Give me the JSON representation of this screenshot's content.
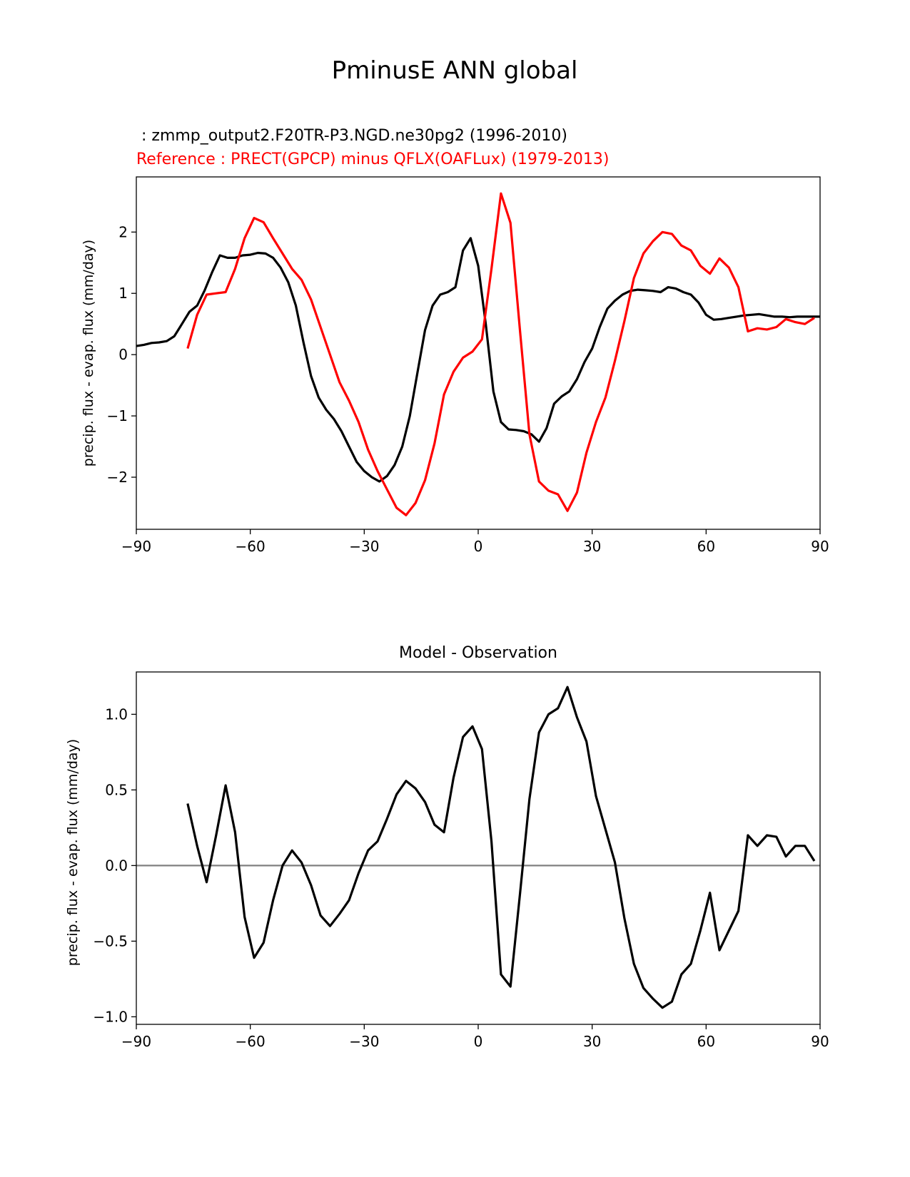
{
  "figure": {
    "suptitle": "PminusE ANN global"
  },
  "chart_data": [
    {
      "type": "line",
      "title_test": " : zmmp_output2.F20TR-P3.NGD.ne30pg2 (1996-2010)",
      "title_ref": "Reference : PRECT(GPCP) minus QFLX(OAFLux) (1979-2013)",
      "xlabel": "",
      "ylabel": "precip. flux - evap. flux (mm/day)",
      "xlim": [
        -90,
        90
      ],
      "ylim": [
        -2.85,
        2.9
      ],
      "xticks": [
        -90,
        -60,
        -30,
        0,
        30,
        60,
        90
      ],
      "xtick_labels": [
        "−90",
        "−60",
        "−30",
        "0",
        "30",
        "60",
        "90"
      ],
      "yticks": [
        -2,
        -1,
        0,
        1,
        2
      ],
      "ytick_labels": [
        "−2",
        "−1",
        "0",
        "1",
        "2"
      ],
      "grid": false,
      "series": [
        {
          "name": "test",
          "color": "#000000",
          "x": [
            -90,
            -88,
            -86,
            -84,
            -82,
            -80,
            -78,
            -76,
            -74,
            -72,
            -70,
            -68,
            -66,
            -64,
            -62,
            -60,
            -58,
            -56,
            -54,
            -52,
            -50,
            -48,
            -46,
            -44,
            -42,
            -40,
            -38,
            -36,
            -34,
            -32,
            -30,
            -28,
            -26,
            -24,
            -22,
            -20,
            -18,
            -16,
            -14,
            -12,
            -10,
            -8,
            -6,
            -4,
            -2,
            0,
            2,
            4,
            6,
            8,
            10,
            12,
            14,
            16,
            18,
            20,
            22,
            24,
            26,
            28,
            30,
            32,
            34,
            36,
            38,
            40,
            42,
            44,
            46,
            48,
            50,
            52,
            54,
            56,
            58,
            60,
            62,
            64,
            66,
            68,
            70,
            72,
            74,
            76,
            78,
            80,
            82,
            84,
            86,
            88,
            90
          ],
          "values": [
            0.14,
            0.16,
            0.19,
            0.2,
            0.22,
            0.3,
            0.5,
            0.7,
            0.8,
            1.05,
            1.35,
            1.62,
            1.58,
            1.58,
            1.62,
            1.63,
            1.66,
            1.65,
            1.58,
            1.42,
            1.18,
            0.8,
            0.2,
            -0.35,
            -0.7,
            -0.9,
            -1.05,
            -1.25,
            -1.5,
            -1.75,
            -1.9,
            -2.0,
            -2.07,
            -1.98,
            -1.8,
            -1.5,
            -1.0,
            -0.3,
            0.4,
            0.8,
            0.98,
            1.02,
            1.1,
            1.7,
            1.9,
            1.45,
            0.5,
            -0.6,
            -1.1,
            -1.22,
            -1.23,
            -1.25,
            -1.3,
            -1.42,
            -1.2,
            -0.8,
            -0.68,
            -0.6,
            -0.4,
            -0.12,
            0.1,
            0.45,
            0.75,
            0.88,
            0.98,
            1.04,
            1.06,
            1.05,
            1.04,
            1.02,
            1.1,
            1.08,
            1.02,
            0.98,
            0.85,
            0.65,
            0.57,
            0.58,
            0.6,
            0.62,
            0.64,
            0.65,
            0.66,
            0.64,
            0.62,
            0.62,
            0.61,
            0.62,
            0.62,
            0.62,
            0.62
          ]
        },
        {
          "name": "reference",
          "color": "#ff0000",
          "x": [
            -76.5,
            -74,
            -71.5,
            -69,
            -66.5,
            -64,
            -61.5,
            -59,
            -56.5,
            -54,
            -51.5,
            -49,
            -46.5,
            -44,
            -41.5,
            -39,
            -36.5,
            -34,
            -31.5,
            -29,
            -26.5,
            -24,
            -21.5,
            -19,
            -16.5,
            -14,
            -11.5,
            -9,
            -6.5,
            -4,
            -1.5,
            1,
            3.5,
            6,
            8.5,
            11,
            13.5,
            16,
            18.5,
            21,
            23.5,
            26,
            28.5,
            31,
            33.5,
            36,
            38.5,
            41,
            43.5,
            46,
            48.5,
            51,
            53.5,
            56,
            58.5,
            61,
            63.5,
            66,
            68.5,
            71,
            73.5,
            76,
            78.5,
            81,
            83.5,
            86,
            88.5
          ],
          "values": [
            0.1,
            0.65,
            0.98,
            1.0,
            1.02,
            1.4,
            1.9,
            2.23,
            2.16,
            1.9,
            1.65,
            1.4,
            1.22,
            0.9,
            0.45,
            0.0,
            -0.45,
            -0.75,
            -1.1,
            -1.55,
            -1.9,
            -2.2,
            -2.5,
            -2.62,
            -2.42,
            -2.05,
            -1.45,
            -0.65,
            -0.28,
            -0.05,
            0.05,
            0.25,
            1.4,
            2.63,
            2.15,
            0.4,
            -1.3,
            -2.07,
            -2.22,
            -2.28,
            -2.55,
            -2.25,
            -1.6,
            -1.1,
            -0.7,
            -0.1,
            0.55,
            1.25,
            1.65,
            1.85,
            2.0,
            1.97,
            1.78,
            1.7,
            1.45,
            1.32,
            1.57,
            1.42,
            1.1,
            0.38,
            0.43,
            0.41,
            0.45,
            0.58,
            0.53,
            0.5,
            0.6
          ]
        }
      ]
    },
    {
      "type": "line",
      "title": "Model - Observation",
      "xlabel": "",
      "ylabel": "precip. flux - evap. flux (mm/day)",
      "xlim": [
        -90,
        90
      ],
      "ylim": [
        -1.05,
        1.28
      ],
      "xticks": [
        -90,
        -60,
        -30,
        0,
        30,
        60,
        90
      ],
      "xtick_labels": [
        "−90",
        "−60",
        "−30",
        "0",
        "30",
        "60",
        "90"
      ],
      "yticks": [
        -1.0,
        -0.5,
        0.0,
        0.5,
        1.0
      ],
      "ytick_labels": [
        "−1.0",
        "−0.5",
        "0.0",
        "0.5",
        "1.0"
      ],
      "zero_line": {
        "value": 0.0,
        "color": "#808080"
      },
      "grid": false,
      "series": [
        {
          "name": "difference",
          "color": "#000000",
          "x": [
            -76.5,
            -74,
            -71.5,
            -69,
            -66.5,
            -64,
            -61.5,
            -59,
            -56.5,
            -54,
            -51.5,
            -49,
            -46.5,
            -44,
            -41.5,
            -39,
            -36.5,
            -34,
            -31.5,
            -29,
            -26.5,
            -24,
            -21.5,
            -19,
            -16.5,
            -14,
            -11.5,
            -9,
            -6.5,
            -4,
            -1.5,
            1,
            3.5,
            6,
            8.5,
            11,
            13.5,
            16,
            18.5,
            21,
            23.5,
            26,
            28.5,
            31,
            33.5,
            36,
            38.5,
            41,
            43.5,
            46,
            48.5,
            51,
            53.5,
            56,
            58.5,
            61,
            63.5,
            66,
            68.5,
            71,
            73.5,
            76,
            78.5,
            81,
            83.5,
            86,
            88.5
          ],
          "values": [
            0.41,
            0.13,
            -0.11,
            0.2,
            0.53,
            0.22,
            -0.34,
            -0.61,
            -0.51,
            -0.23,
            0.0,
            0.1,
            0.02,
            -0.13,
            -0.33,
            -0.4,
            -0.32,
            -0.23,
            -0.05,
            0.1,
            0.16,
            0.31,
            0.47,
            0.56,
            0.51,
            0.42,
            0.27,
            0.22,
            0.58,
            0.85,
            0.92,
            0.77,
            0.16,
            -0.72,
            -0.8,
            -0.19,
            0.44,
            0.88,
            1.0,
            1.04,
            1.18,
            0.98,
            0.82,
            0.46,
            0.24,
            0.02,
            -0.35,
            -0.65,
            -0.81,
            -0.88,
            -0.94,
            -0.9,
            -0.72,
            -0.65,
            -0.43,
            -0.18,
            -0.56,
            -0.43,
            -0.3,
            0.2,
            0.13,
            0.2,
            0.19,
            0.06,
            0.13,
            0.13,
            0.03
          ]
        }
      ]
    }
  ]
}
